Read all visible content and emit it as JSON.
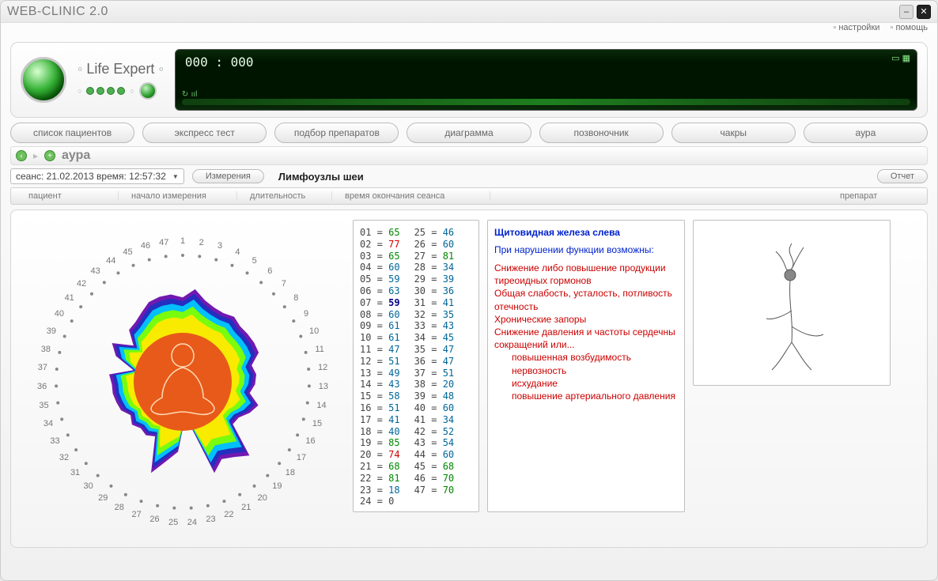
{
  "window": {
    "title": "WEB-CLINIC 2.0"
  },
  "toplinks": {
    "settings": "настройки",
    "help": "помощь"
  },
  "module": {
    "name": "Life Expert",
    "readout": "000 : 000"
  },
  "nav": [
    "список пациентов",
    "экспресс тест",
    "подбор препаратов",
    "диаграмма",
    "позвоночник",
    "чакры",
    "аура"
  ],
  "breadcrumb": {
    "label": "аура"
  },
  "session": {
    "selector": "сеанс: 21.02.2013   время:  12:57:32",
    "measure_btn": "Измерения",
    "section_title": "Лимфоузлы шеи",
    "report_btn": "Отчет"
  },
  "columns": {
    "c1": "пациент",
    "c2": "начало измерения",
    "c3": "длительность",
    "c4": "время окончания сеанса",
    "c5": "препарат"
  },
  "aura": {
    "point_count": 47,
    "ring_radius": 185,
    "center_color": "#e85a1a",
    "rings": [
      "#ffea00",
      "#7fff00",
      "#00c8ff",
      "#2030c0",
      "#6a0dad"
    ]
  },
  "datapoints": [
    {
      "i": 1,
      "v": 65,
      "c": "#008800"
    },
    {
      "i": 2,
      "v": 77,
      "c": "#cc0000"
    },
    {
      "i": 3,
      "v": 65,
      "c": "#008800"
    },
    {
      "i": 4,
      "v": 60,
      "c": "#006699"
    },
    {
      "i": 5,
      "v": 59,
      "c": "#006699"
    },
    {
      "i": 6,
      "v": 63,
      "c": "#006699"
    },
    {
      "i": 7,
      "v": 59,
      "c": "#000088",
      "bold": true
    },
    {
      "i": 8,
      "v": 60,
      "c": "#006699"
    },
    {
      "i": 9,
      "v": 61,
      "c": "#006699"
    },
    {
      "i": 10,
      "v": 61,
      "c": "#006699"
    },
    {
      "i": 11,
      "v": 47,
      "c": "#006699"
    },
    {
      "i": 12,
      "v": 51,
      "c": "#006699"
    },
    {
      "i": 13,
      "v": 49,
      "c": "#006699"
    },
    {
      "i": 14,
      "v": 43,
      "c": "#006699"
    },
    {
      "i": 15,
      "v": 58,
      "c": "#006699"
    },
    {
      "i": 16,
      "v": 51,
      "c": "#006699"
    },
    {
      "i": 17,
      "v": 41,
      "c": "#006699"
    },
    {
      "i": 18,
      "v": 40,
      "c": "#006699"
    },
    {
      "i": 19,
      "v": 85,
      "c": "#008800"
    },
    {
      "i": 20,
      "v": 74,
      "c": "#cc0000"
    },
    {
      "i": 21,
      "v": 68,
      "c": "#008800"
    },
    {
      "i": 22,
      "v": 81,
      "c": "#008800"
    },
    {
      "i": 23,
      "v": 18,
      "c": "#006699"
    },
    {
      "i": 24,
      "v": 0,
      "c": "#444444"
    },
    {
      "i": 25,
      "v": 46,
      "c": "#006699"
    },
    {
      "i": 26,
      "v": 60,
      "c": "#006699"
    },
    {
      "i": 27,
      "v": 81,
      "c": "#008800"
    },
    {
      "i": 28,
      "v": 34,
      "c": "#006699"
    },
    {
      "i": 29,
      "v": 39,
      "c": "#006699"
    },
    {
      "i": 30,
      "v": 36,
      "c": "#006699"
    },
    {
      "i": 31,
      "v": 41,
      "c": "#006699"
    },
    {
      "i": 32,
      "v": 35,
      "c": "#006699"
    },
    {
      "i": 33,
      "v": 43,
      "c": "#006699"
    },
    {
      "i": 34,
      "v": 45,
      "c": "#006699"
    },
    {
      "i": 35,
      "v": 47,
      "c": "#006699"
    },
    {
      "i": 36,
      "v": 47,
      "c": "#006699"
    },
    {
      "i": 37,
      "v": 51,
      "c": "#006699"
    },
    {
      "i": 38,
      "v": 20,
      "c": "#006699"
    },
    {
      "i": 39,
      "v": 48,
      "c": "#006699"
    },
    {
      "i": 40,
      "v": 60,
      "c": "#006699"
    },
    {
      "i": 41,
      "v": 34,
      "c": "#006699"
    },
    {
      "i": 42,
      "v": 52,
      "c": "#006699"
    },
    {
      "i": 43,
      "v": 54,
      "c": "#006699"
    },
    {
      "i": 44,
      "v": 60,
      "c": "#006699"
    },
    {
      "i": 45,
      "v": 68,
      "c": "#008800"
    },
    {
      "i": 46,
      "v": 70,
      "c": "#008800"
    },
    {
      "i": 47,
      "v": 70,
      "c": "#008800"
    }
  ],
  "info": {
    "header": "Щитовидная железа слева",
    "subheader": "При нарушении функции возможны:",
    "lines": [
      "Снижение либо повышение продукции тиреоидных гормонов",
      "Общая слабость, усталость, потливость отечность",
      "Хронические запоры",
      "Снижение давления и частоты сердечны сокращений или..."
    ],
    "indented": [
      "повышенная возбудимость",
      "нервозность",
      "исхудание",
      "повышение артериального давления"
    ]
  }
}
